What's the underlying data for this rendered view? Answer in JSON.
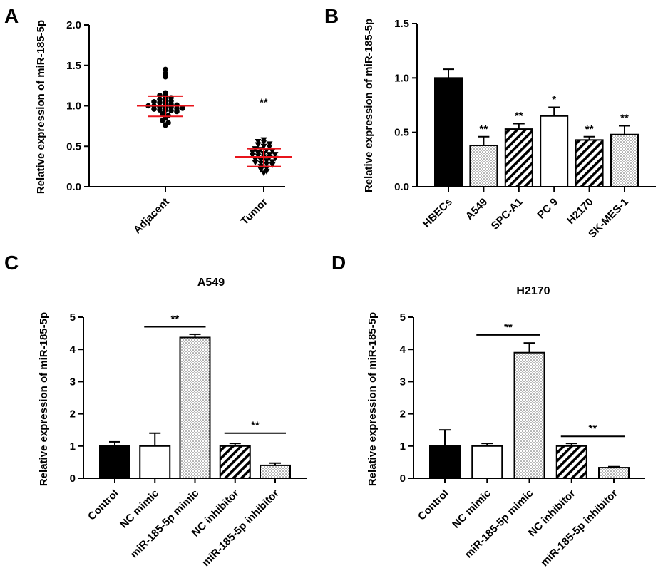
{
  "colors": {
    "ink": "#000000",
    "error_red": "#e8141b",
    "bar_white": "#ffffff",
    "background": "#ffffff"
  },
  "chart_data": [
    {
      "panel": "A",
      "type": "scatter",
      "title": "",
      "ylabel": "Relative expression of  miR-185-5p",
      "xlabel": "",
      "ylim": [
        0,
        2.0
      ],
      "yticks": [
        "0.0",
        "0.5",
        "1.0",
        "1.5",
        "2.0"
      ],
      "tick_values": [
        0,
        0.5,
        1.0,
        1.5,
        2.0
      ],
      "categories": [
        "Adjacent",
        "Tumor"
      ],
      "series": [
        {
          "name": "Adjacent",
          "marker": "circle",
          "mean": 1.0,
          "sd_low": 0.87,
          "sd_high": 1.12,
          "sig": "",
          "points": [
            1.45,
            1.4,
            1.36,
            1.16,
            1.13,
            1.12,
            1.1,
            1.08,
            1.07,
            1.06,
            1.05,
            1.04,
            1.03,
            1.02,
            1.01,
            1.0,
            1.0,
            0.99,
            0.98,
            0.98,
            0.97,
            0.97,
            0.96,
            0.95,
            0.95,
            0.94,
            0.93,
            0.9,
            0.88,
            0.85,
            0.82,
            0.79,
            0.76
          ]
        },
        {
          "name": "Tumor",
          "marker": "triangle-down",
          "mean": 0.37,
          "sd_low": 0.25,
          "sd_high": 0.47,
          "sig": "**",
          "points": [
            0.58,
            0.56,
            0.55,
            0.53,
            0.52,
            0.5,
            0.49,
            0.47,
            0.46,
            0.45,
            0.44,
            0.43,
            0.42,
            0.41,
            0.4,
            0.4,
            0.39,
            0.38,
            0.37,
            0.36,
            0.35,
            0.34,
            0.33,
            0.32,
            0.31,
            0.3,
            0.29,
            0.28,
            0.27,
            0.25,
            0.23,
            0.21,
            0.19,
            0.17
          ]
        }
      ]
    },
    {
      "panel": "B",
      "type": "bar",
      "title": "",
      "ylabel": "Relative expression of  miR-185-5p",
      "xlabel": "",
      "ylim": [
        0,
        1.5
      ],
      "yticks": [
        "0.0",
        "0.5",
        "1.0",
        "1.5"
      ],
      "tick_values": [
        0,
        0.5,
        1.0,
        1.5
      ],
      "categories": [
        "HBECs",
        "A549",
        "SPC-A1",
        "PC 9",
        "H2170",
        "SK-MES-1"
      ],
      "values": [
        1.0,
        0.38,
        0.53,
        0.65,
        0.43,
        0.48
      ],
      "errors": [
        0.08,
        0.08,
        0.05,
        0.08,
        0.03,
        0.08
      ],
      "fills": [
        "solid",
        "dots",
        "stripes",
        "white",
        "stripes",
        "dots"
      ],
      "sig": [
        "",
        "**",
        "**",
        "*",
        "**",
        "**"
      ]
    },
    {
      "panel": "C",
      "type": "bar",
      "title": "A549",
      "ylabel": "Relative expression of  miR-185-5p",
      "xlabel": "",
      "ylim": [
        0,
        5
      ],
      "yticks": [
        "0",
        "1",
        "2",
        "3",
        "4",
        "5"
      ],
      "tick_values": [
        0,
        1,
        2,
        3,
        4,
        5
      ],
      "categories": [
        "Control",
        "NC mimic",
        "miR-185-5p mimic",
        "NC inhibitor",
        "miR-185-5p inhibitor"
      ],
      "values": [
        1.0,
        1.0,
        4.37,
        1.0,
        0.4
      ],
      "errors": [
        0.13,
        0.4,
        0.1,
        0.08,
        0.07
      ],
      "fills": [
        "solid",
        "white",
        "dots",
        "stripes",
        "dots"
      ],
      "brackets": [
        {
          "from": 1,
          "to": 2,
          "label": "**",
          "y": 4.7
        },
        {
          "from": 3,
          "to": 4,
          "label": "**",
          "y": 1.4
        }
      ]
    },
    {
      "panel": "D",
      "type": "bar",
      "title": "H2170",
      "ylabel": "Relative expression of  miR-185-5p",
      "xlabel": "",
      "ylim": [
        0,
        5
      ],
      "yticks": [
        "0",
        "1",
        "2",
        "3",
        "4",
        "5"
      ],
      "tick_values": [
        0,
        1,
        2,
        3,
        4,
        5
      ],
      "categories": [
        "Control",
        "NC mimic",
        "miR-185-5p mimic",
        "NC inhibitor",
        "miR-185-5p inhibitor"
      ],
      "values": [
        1.0,
        1.0,
        3.9,
        1.0,
        0.33
      ],
      "errors": [
        0.5,
        0.08,
        0.3,
        0.08,
        0.03
      ],
      "fills": [
        "solid",
        "white",
        "dots",
        "stripes",
        "dots"
      ],
      "brackets": [
        {
          "from": 1,
          "to": 2,
          "label": "**",
          "y": 4.45
        },
        {
          "from": 3,
          "to": 4,
          "label": "**",
          "y": 1.3
        }
      ]
    }
  ]
}
